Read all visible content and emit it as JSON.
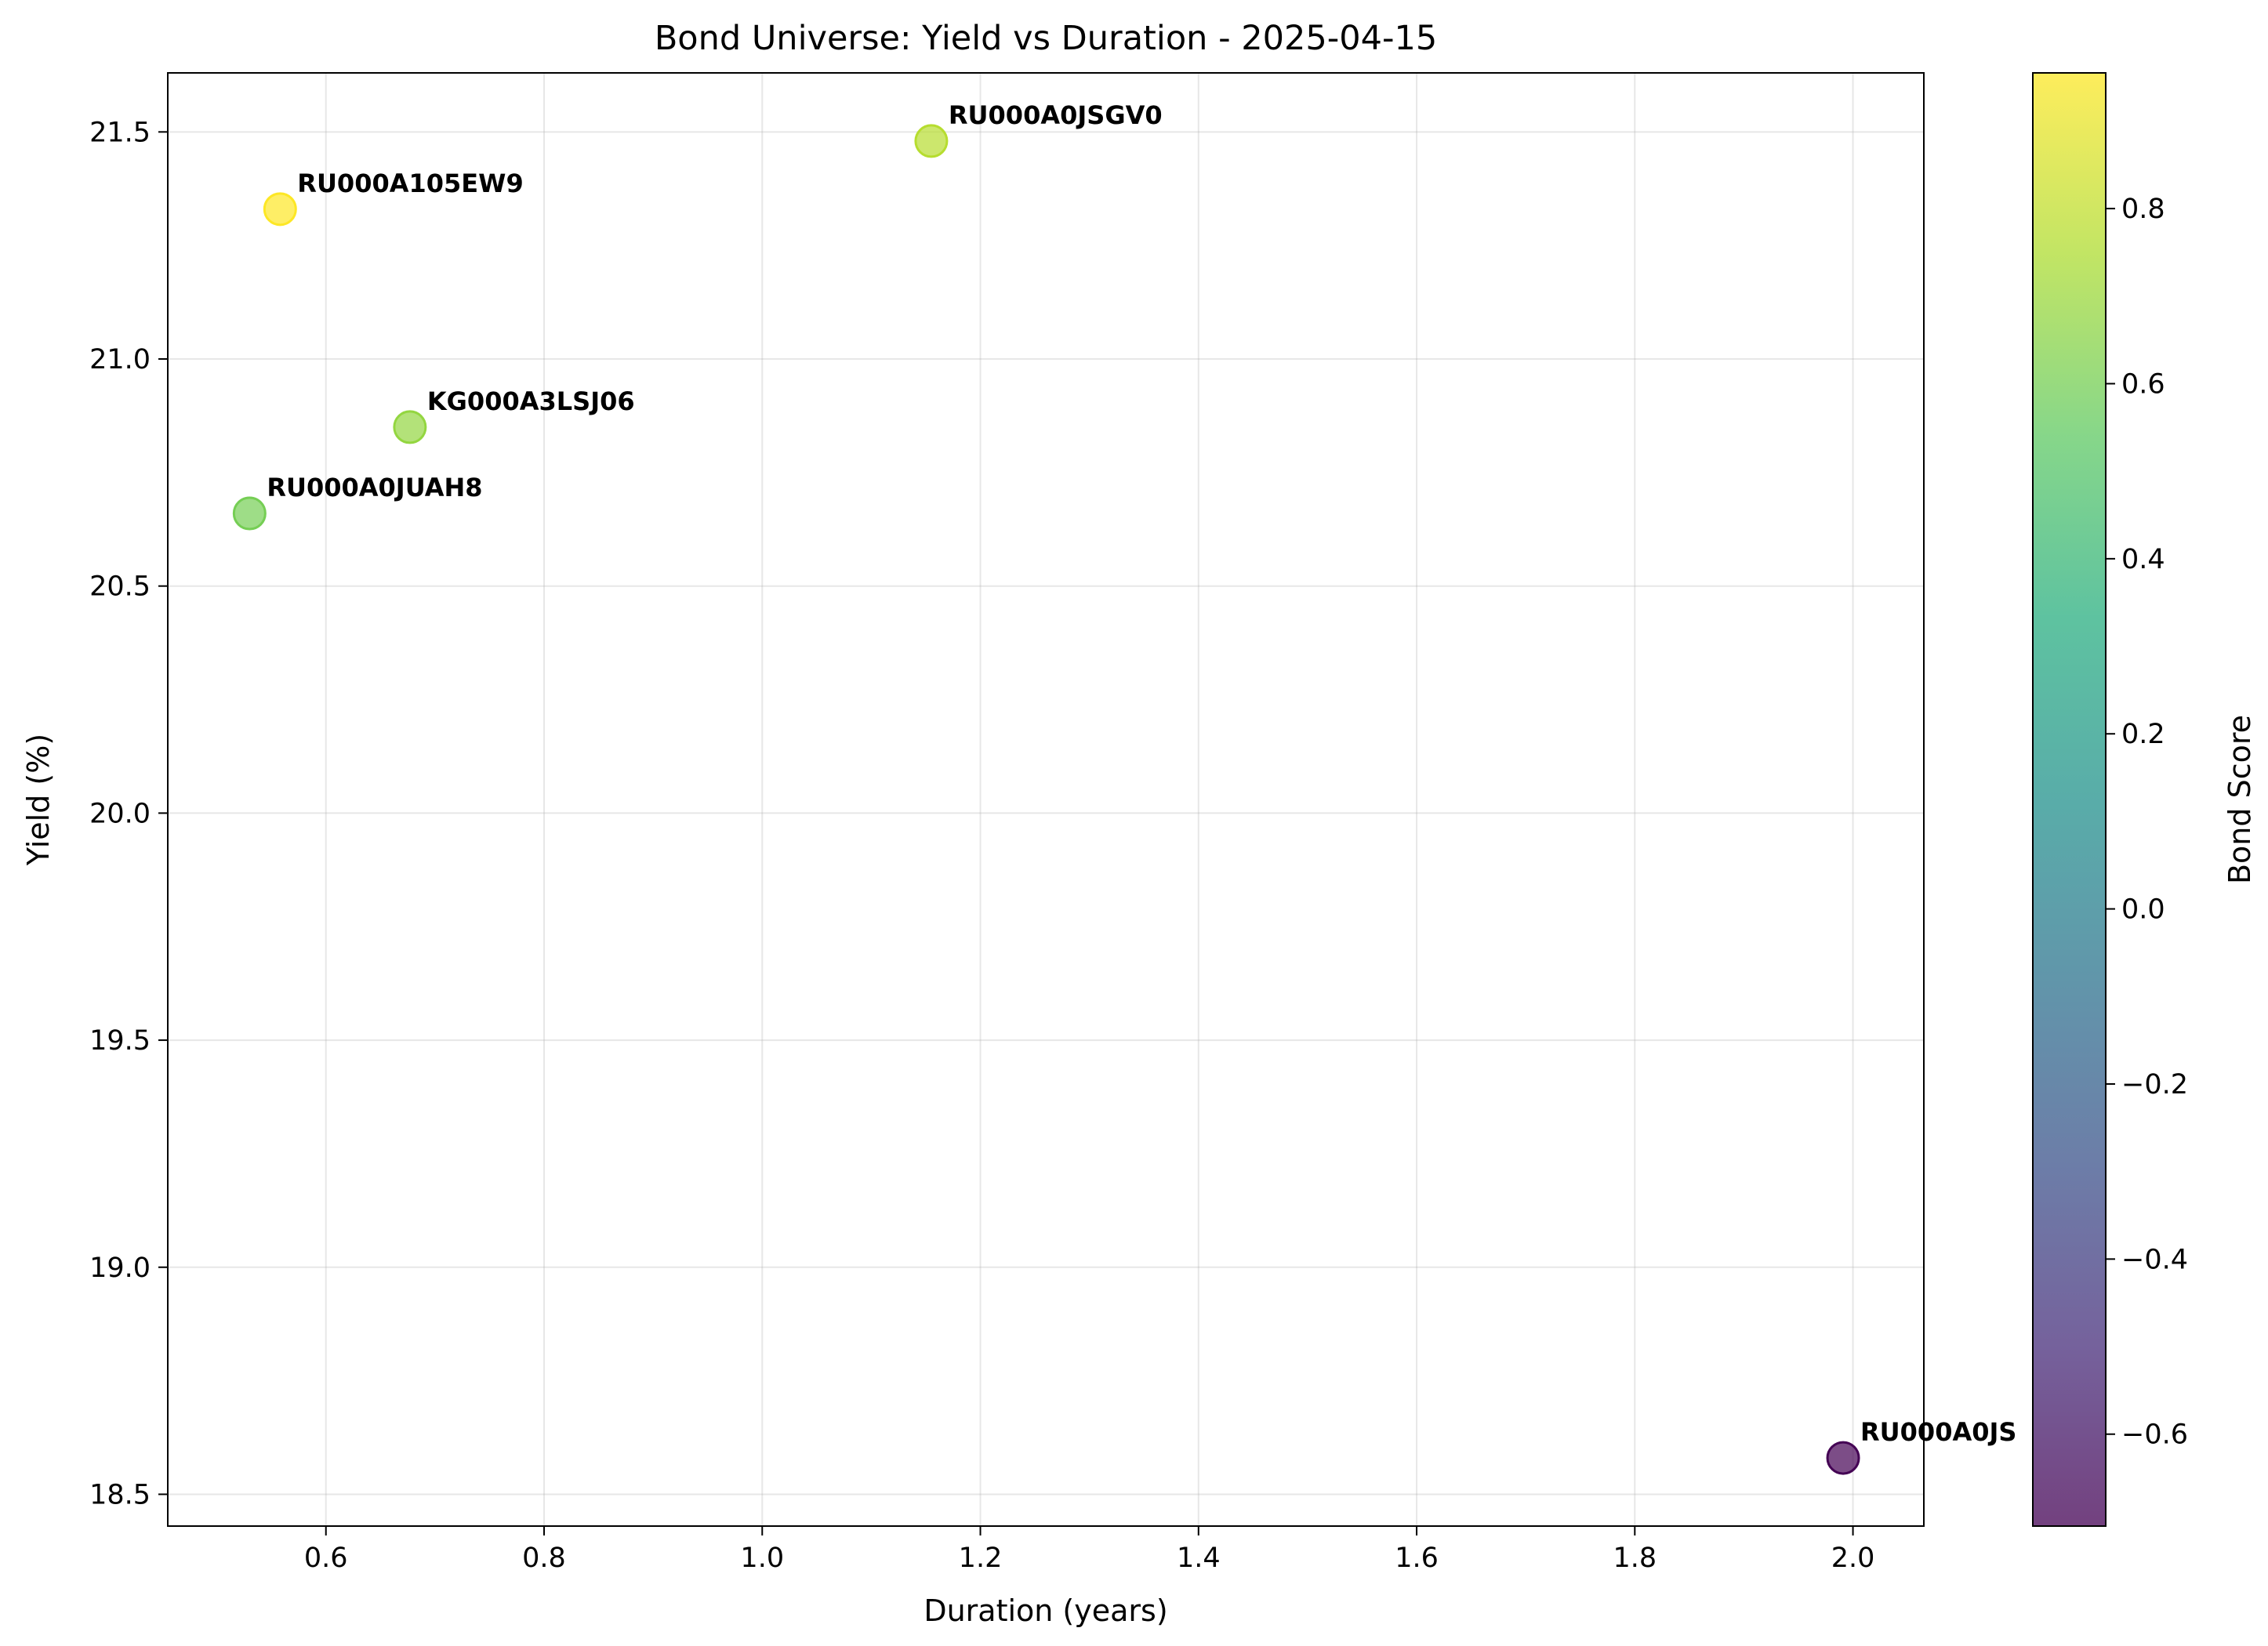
{
  "chart_data": {
    "type": "scatter",
    "title": "Bond Universe: Yield vs Duration - 2025-04-15",
    "xlabel": "Duration (years)",
    "ylabel": "Yield (%)",
    "xlim": [
      0.455,
      2.065
    ],
    "ylim": [
      18.43,
      21.63
    ],
    "xticks": [
      0.6,
      0.8,
      1.0,
      1.2,
      1.4,
      1.6,
      1.8,
      2.0
    ],
    "xtick_labels": [
      "0.6",
      "0.8",
      "1.0",
      "1.2",
      "1.4",
      "1.6",
      "1.8",
      "2.0"
    ],
    "yticks": [
      18.5,
      19.0,
      19.5,
      20.0,
      20.5,
      21.0,
      21.5
    ],
    "ytick_labels": [
      "18.5",
      "19.0",
      "19.5",
      "20.0",
      "20.5",
      "21.0",
      "21.5"
    ],
    "grid": true,
    "colormap": "viridis",
    "point_alpha": 0.7,
    "colorbar": {
      "label": "Bond Score",
      "range": [
        -0.705,
        0.955
      ],
      "ticks": [
        -0.6,
        -0.4,
        -0.2,
        0.0,
        0.2,
        0.4,
        0.6,
        0.8
      ],
      "tick_labels": [
        "−0.6",
        "−0.4",
        "−0.2",
        "0.0",
        "0.2",
        "0.4",
        "0.6",
        "0.8"
      ]
    },
    "points": [
      {
        "label": "RU000A105EW9",
        "x": 0.558,
        "y": 21.33,
        "score": 0.955
      },
      {
        "label": "RU000A0JSGV0",
        "x": 1.155,
        "y": 21.48,
        "score": 0.77
      },
      {
        "label": "KG000A3LSJ06",
        "x": 0.677,
        "y": 20.85,
        "score": 0.68
      },
      {
        "label": "RU000A0JUAH8",
        "x": 0.53,
        "y": 20.66,
        "score": 0.6
      },
      {
        "label": "RU000A0JS",
        "x": 1.991,
        "y": 18.58,
        "score": -0.705
      }
    ]
  }
}
